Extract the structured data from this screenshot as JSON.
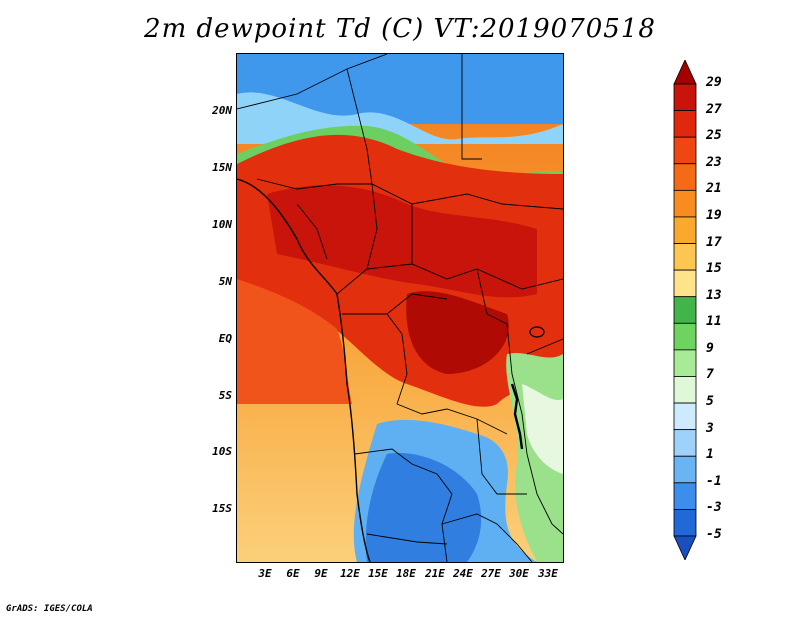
{
  "title": "2m dewpoint Td (C) VT:2019070518",
  "credit": "GrADS: IGES/COLA",
  "lat_labels": [
    "20N",
    "15N",
    "10N",
    "5N",
    "EQ",
    "5S",
    "10S",
    "15S"
  ],
  "lon_labels": [
    "3E",
    "6E",
    "9E",
    "12E",
    "15E",
    "18E",
    "21E",
    "24E",
    "27E",
    "30E",
    "33E"
  ],
  "colorbar": {
    "labels": [
      "29",
      "27",
      "25",
      "23",
      "21",
      "19",
      "17",
      "15",
      "13",
      "11",
      "9",
      "7",
      "5",
      "3",
      "1",
      "-1",
      "-3",
      "-5"
    ],
    "colors": [
      "#a50000",
      "#c8140a",
      "#e0280e",
      "#ef4612",
      "#f56a17",
      "#f98c1e",
      "#fba92e",
      "#fcc652",
      "#fde48a",
      "#42b54a",
      "#6fd45f",
      "#a8ea96",
      "#dff8d8",
      "#cdebfc",
      "#9fd2fa",
      "#6ab4f4",
      "#3c8eea",
      "#2269d8",
      "#1a4fc0"
    ]
  },
  "regions": {
    "arid_north": "#4aa6f0",
    "south_dry": "#3a86e4",
    "ocean": "#f7a23c"
  }
}
